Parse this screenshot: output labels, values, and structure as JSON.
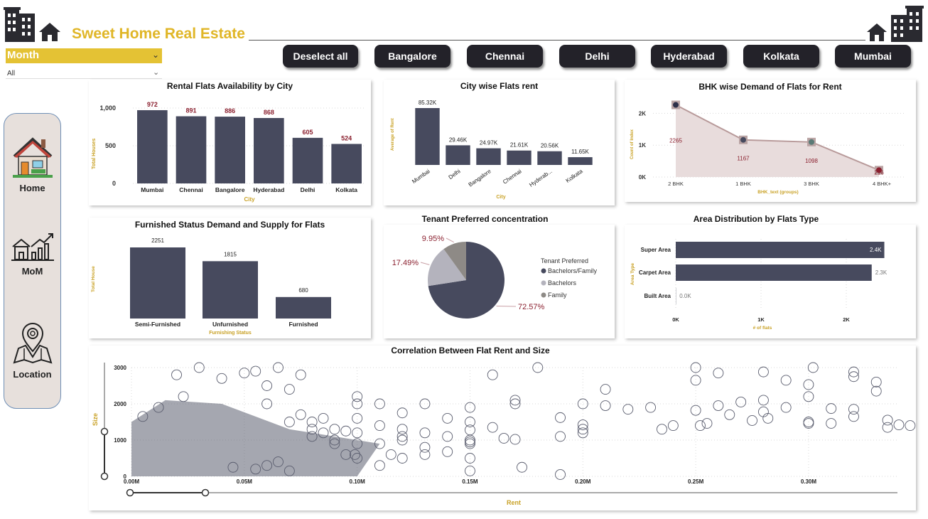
{
  "header": {
    "title": "Sweet Home Real Estate"
  },
  "filters": {
    "month_label": "Month",
    "month_value": "All"
  },
  "city_buttons": [
    "Deselect all",
    "Bangalore",
    "Chennai",
    "Delhi",
    "Hyderabad",
    "Kolkata",
    "Mumbai"
  ],
  "nav": {
    "items": [
      {
        "label": "Home",
        "icon": "house-icon"
      },
      {
        "label": "MoM",
        "icon": "growth-chart-house-icon"
      },
      {
        "label": "Location",
        "icon": "map-pin-icon"
      }
    ]
  },
  "colors": {
    "accent": "#e0b627",
    "bar": "#474a5e",
    "value_label": "#8a1f2e",
    "axis_title": "#c9a227",
    "button_bg": "#232229",
    "area_fill": "#e8dcdc"
  },
  "chart_data": [
    {
      "type": "bar",
      "title": "Rental Flats Availability by City",
      "xlabel": "City",
      "ylabel": "Total Houses",
      "categories": [
        "Mumbai",
        "Chennai",
        "Bangalore",
        "Hyderabad",
        "Delhi",
        "Kolkata"
      ],
      "values": [
        972,
        891,
        886,
        868,
        605,
        524
      ],
      "value_labels": [
        "972",
        "891",
        "886",
        "868",
        "605",
        "524"
      ],
      "yticks": [
        "1,000",
        "500",
        "0"
      ],
      "ylim": [
        0,
        1000
      ]
    },
    {
      "type": "bar",
      "title": "City wise Flats rent",
      "xlabel": "City",
      "ylabel": "Average of Rent",
      "categories": [
        "Mumbai",
        "Delhi",
        "Bangalore",
        "Chennai",
        "Hyderab...",
        "Kolkata"
      ],
      "values": [
        85320,
        29460,
        24970,
        21610,
        20560,
        11650
      ],
      "value_labels": [
        "85.32K",
        "29.46K",
        "24.97K",
        "21.61K",
        "20.56K",
        "11.65K"
      ],
      "ylim": [
        0,
        90000
      ]
    },
    {
      "type": "area",
      "title": "BHK wise Demand of Flats for Rent",
      "xlabel": "BHK_text (groups)",
      "ylabel": "Count of Index",
      "categories": [
        "2 BHK",
        "1 BHK",
        "3 BHK",
        "4 BHK+"
      ],
      "values": [
        2265,
        1167,
        1098,
        216
      ],
      "value_labels": [
        "2265",
        "1167",
        "1098",
        "216"
      ],
      "yticks": [
        "2K",
        "1K",
        "0K"
      ],
      "ylim": [
        0,
        2500
      ]
    },
    {
      "type": "bar",
      "title": "Furnished Status Demand and Supply for Flats",
      "xlabel": "Furnishing Status",
      "ylabel": "Total House",
      "categories": [
        "Semi-Furnished",
        "Unfurnished",
        "Furnished"
      ],
      "values": [
        2251,
        1815,
        680
      ],
      "value_labels": [
        "2251",
        "1815",
        "680"
      ],
      "ylim": [
        0,
        2251
      ]
    },
    {
      "type": "pie",
      "title": "Tenant Preferred concentration",
      "legend_title": "Tenant Preferred",
      "categories": [
        "Bachelors/Family",
        "Bachelors",
        "Family"
      ],
      "values": [
        72.57,
        17.49,
        9.95
      ],
      "value_labels": [
        "72.57%",
        "17.49%",
        "9.95%"
      ],
      "colors": [
        "#474a5e",
        "#b4b3bd",
        "#8e8a86"
      ]
    },
    {
      "type": "bar",
      "orientation": "horizontal",
      "title": "Area Distribution by Flats Type",
      "xlabel": "# of flats",
      "ylabel": "Area Type",
      "categories": [
        "Super Area",
        "Carpet Area",
        "Built Area"
      ],
      "values": [
        2446,
        2298,
        2
      ],
      "value_labels": [
        "2.4K",
        "2.3K",
        "0.0K"
      ],
      "xticks": [
        "0K",
        "1K",
        "2K"
      ],
      "xlim": [
        0,
        2500
      ]
    },
    {
      "type": "scatter",
      "title": "Correlation Between Flat Rent and Size",
      "xlabel": "Rent",
      "ylabel": "Size",
      "xticks": [
        "0.00M",
        "0.05M",
        "0.10M",
        "0.15M",
        "0.20M",
        "0.25M",
        "0.30M"
      ],
      "yticks": [
        "3000",
        "2000",
        "1000",
        "0"
      ],
      "xlim": [
        0,
        340000
      ],
      "ylim": [
        0,
        3000
      ],
      "points": [
        [
          250000,
          3000
        ],
        [
          302000,
          3000
        ],
        [
          320000,
          2880
        ],
        [
          260000,
          2850
        ],
        [
          280000,
          2880
        ],
        [
          290000,
          2650
        ],
        [
          320000,
          2750
        ],
        [
          330000,
          2600
        ],
        [
          250000,
          2650
        ],
        [
          300000,
          2530
        ],
        [
          330000,
          2350
        ],
        [
          350000,
          2080
        ],
        [
          300000,
          2200
        ],
        [
          280000,
          2100
        ],
        [
          270000,
          2050
        ],
        [
          260000,
          1950
        ],
        [
          290000,
          1900
        ],
        [
          310000,
          1870
        ],
        [
          320000,
          1850
        ],
        [
          280000,
          1780
        ],
        [
          250000,
          1820
        ],
        [
          265000,
          1700
        ],
        [
          320000,
          1650
        ],
        [
          335000,
          1550
        ],
        [
          350000,
          1600
        ],
        [
          350000,
          1650
        ],
        [
          340000,
          1420
        ],
        [
          345000,
          1400
        ],
        [
          335000,
          1350
        ],
        [
          310000,
          1460
        ],
        [
          300000,
          1500
        ],
        [
          300000,
          1460
        ],
        [
          282000,
          1600
        ],
        [
          275000,
          1540
        ],
        [
          255000,
          1460
        ],
        [
          252000,
          1400
        ],
        [
          240000,
          1400
        ],
        [
          235000,
          1300
        ],
        [
          230000,
          1900
        ],
        [
          220000,
          1850
        ],
        [
          210000,
          1950
        ],
        [
          210000,
          2400
        ],
        [
          180000,
          3000
        ],
        [
          200000,
          2000
        ],
        [
          200000,
          1420
        ],
        [
          200000,
          1300
        ],
        [
          200000,
          1200
        ],
        [
          190000,
          1620
        ],
        [
          190000,
          1100
        ],
        [
          170000,
          1020
        ],
        [
          170000,
          2100
        ],
        [
          170000,
          2000
        ],
        [
          160000,
          2800
        ],
        [
          140000,
          1600
        ],
        [
          130000,
          2000
        ],
        [
          150000,
          1900
        ],
        [
          150000,
          1500
        ],
        [
          160000,
          1350
        ],
        [
          150000,
          1280
        ],
        [
          165000,
          1050
        ],
        [
          150000,
          1000
        ],
        [
          140000,
          1100
        ],
        [
          150000,
          950
        ],
        [
          150000,
          900
        ],
        [
          150000,
          500
        ],
        [
          130000,
          1200
        ],
        [
          130000,
          800
        ],
        [
          130000,
          600
        ],
        [
          120000,
          1750
        ],
        [
          120000,
          1300
        ],
        [
          120000,
          1100
        ],
        [
          120000,
          1000
        ],
        [
          110000,
          1400
        ],
        [
          110000,
          900
        ],
        [
          110000,
          2000
        ],
        [
          100000,
          2000
        ],
        [
          100000,
          2200
        ],
        [
          100000,
          1200
        ],
        [
          100000,
          900
        ],
        [
          100000,
          500
        ],
        [
          100000,
          1600
        ],
        [
          95000,
          1250
        ],
        [
          90000,
          1300
        ],
        [
          90000,
          1000
        ],
        [
          90000,
          900
        ],
        [
          85000,
          1600
        ],
        [
          85000,
          1200
        ],
        [
          80000,
          1500
        ],
        [
          80000,
          1300
        ],
        [
          80000,
          1100
        ],
        [
          75000,
          2800
        ],
        [
          75000,
          1700
        ],
        [
          70000,
          2400
        ],
        [
          70000,
          1500
        ],
        [
          65000,
          3000
        ],
        [
          60000,
          2000
        ],
        [
          60000,
          2500
        ],
        [
          55000,
          2900
        ],
        [
          50000,
          2850
        ],
        [
          40000,
          2700
        ],
        [
          30000,
          3000
        ],
        [
          20000,
          2800
        ],
        [
          23000,
          2200
        ],
        [
          12000,
          1900
        ],
        [
          5000,
          1650
        ],
        [
          45000,
          250
        ],
        [
          55000,
          200
        ],
        [
          60000,
          300
        ],
        [
          65000,
          400
        ],
        [
          70000,
          150
        ],
        [
          95000,
          600
        ],
        [
          99000,
          600
        ],
        [
          110000,
          300
        ],
        [
          150000,
          150
        ],
        [
          173000,
          250
        ],
        [
          190000,
          50
        ],
        [
          140000,
          680
        ],
        [
          115000,
          600
        ],
        [
          120000,
          500
        ]
      ]
    }
  ]
}
